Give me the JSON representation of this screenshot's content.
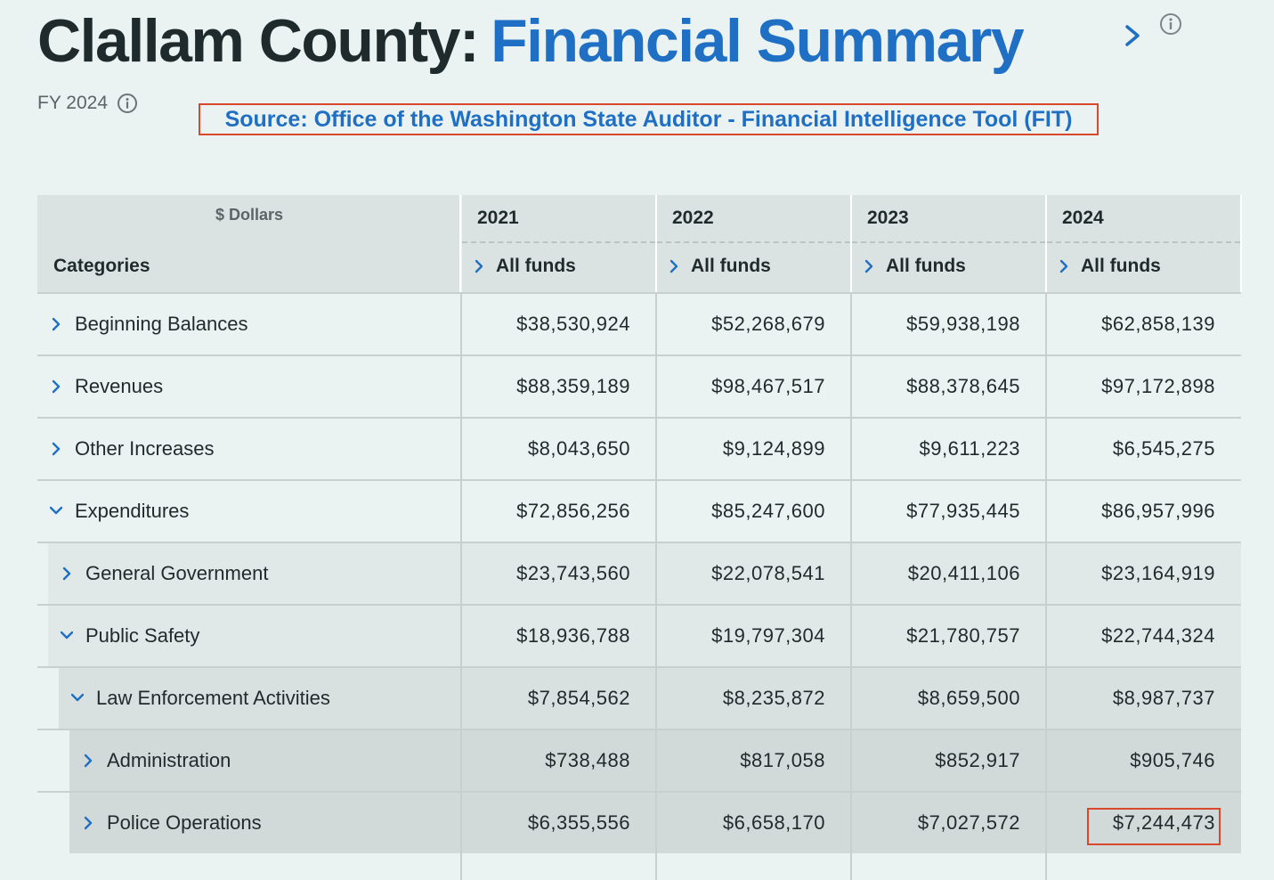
{
  "header": {
    "title_main": "Clallam County:",
    "title_accent": "Financial Summary",
    "title_chevron_icon": "chevron-right-icon",
    "title_info_icon": "info-icon",
    "fy_label": "FY 2024",
    "fy_info_icon": "info-icon",
    "source_text": "Source: Office of the Washington State Auditor - Financial Intelligence Tool (FIT)"
  },
  "colors": {
    "accent": "#1f6fc4",
    "highlight": "#d9472c",
    "background": "#eaf3f1"
  },
  "table": {
    "dollars_label": "$ Dollars",
    "categories_label": "Categories",
    "years": [
      {
        "year": "2021",
        "funds": "All funds"
      },
      {
        "year": "2022",
        "funds": "All funds"
      },
      {
        "year": "2023",
        "funds": "All funds"
      },
      {
        "year": "2024",
        "funds": "All funds"
      }
    ],
    "rows": [
      {
        "label": "Beginning Balances",
        "level": 0,
        "expanded": false,
        "values": [
          "$38,530,924",
          "$52,268,679",
          "$59,938,198",
          "$62,858,139"
        ]
      },
      {
        "label": "Revenues",
        "level": 0,
        "expanded": false,
        "values": [
          "$88,359,189",
          "$98,467,517",
          "$88,378,645",
          "$97,172,898"
        ]
      },
      {
        "label": "Other Increases",
        "level": 0,
        "expanded": false,
        "values": [
          "$8,043,650",
          "$9,124,899",
          "$9,611,223",
          "$6,545,275"
        ]
      },
      {
        "label": "Expenditures",
        "level": 0,
        "expanded": true,
        "values": [
          "$72,856,256",
          "$85,247,600",
          "$77,935,445",
          "$86,957,996"
        ]
      },
      {
        "label": "General Government",
        "level": 1,
        "expanded": false,
        "values": [
          "$23,743,560",
          "$22,078,541",
          "$20,411,106",
          "$23,164,919"
        ]
      },
      {
        "label": "Public Safety",
        "level": 1,
        "expanded": true,
        "values": [
          "$18,936,788",
          "$19,797,304",
          "$21,780,757",
          "$22,744,324"
        ]
      },
      {
        "label": "Law Enforcement Activities",
        "level": 2,
        "expanded": true,
        "values": [
          "$7,854,562",
          "$8,235,872",
          "$8,659,500",
          "$8,987,737"
        ]
      },
      {
        "label": "Administration",
        "level": 3,
        "expanded": false,
        "values": [
          "$738,488",
          "$817,058",
          "$852,917",
          "$905,746"
        ]
      },
      {
        "label": "Police Operations",
        "level": 3,
        "expanded": false,
        "values": [
          "$6,355,556",
          "$6,658,170",
          "$7,027,572",
          "$7,244,473"
        ]
      }
    ]
  }
}
